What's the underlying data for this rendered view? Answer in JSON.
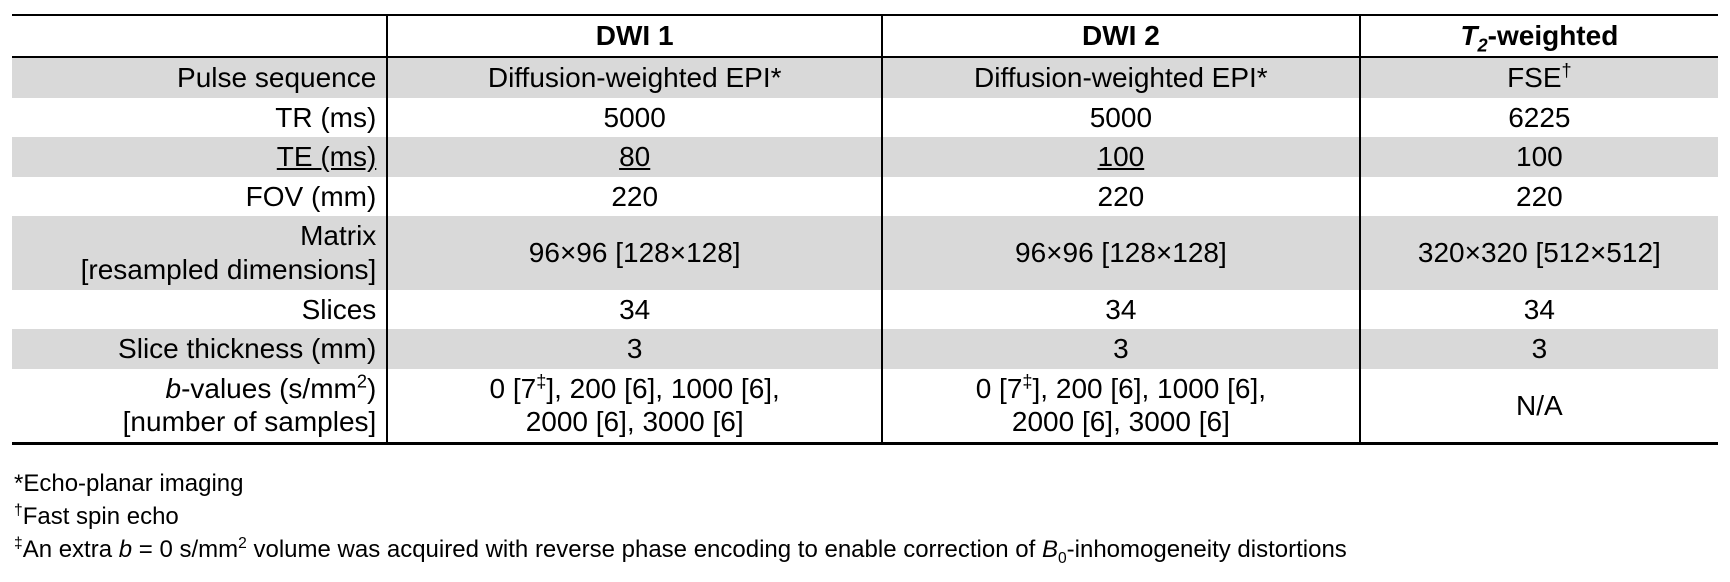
{
  "page": {
    "background_color": "#ffffff",
    "text_color": "#000000",
    "stripe_color": "#d9d9d9",
    "border_color": "#000000"
  },
  "table": {
    "column_headers": {
      "col0": "",
      "col1": "DWI 1",
      "col2": "DWI 2",
      "col3": "<i>T<sub>2</sub></i>-weighted"
    },
    "rows": [
      {
        "label": "Pulse sequence",
        "values": [
          "Diffusion-weighted EPI*",
          "Diffusion-weighted EPI*",
          "FSE<sup>†</sup>"
        ]
      },
      {
        "label": "TR (ms)",
        "values": [
          "5000",
          "5000",
          "6225"
        ]
      },
      {
        "label": "<u>TE (ms)</u>",
        "values": [
          "<u>80</u>",
          "<u>100</u>",
          "100"
        ]
      },
      {
        "label": "FOV (mm)",
        "values": [
          "220",
          "220",
          "220"
        ]
      },
      {
        "label": "Matrix<br>[resampled dimensions]",
        "values": [
          "96×96 [128×128]",
          "96×96 [128×128]",
          "320×320 [512×512]"
        ]
      },
      {
        "label": "Slices",
        "values": [
          "34",
          "34",
          "34"
        ]
      },
      {
        "label": "Slice thickness (mm)",
        "values": [
          "3",
          "3",
          "3"
        ]
      },
      {
        "label": "<i>b</i>-values (s/mm<sup>2</sup>)<br>[number of samples]",
        "values": [
          "0 [7<sup>‡</sup>], 200 [6], 1000 [6],<br>2000 [6], 3000 [6]",
          "0 [7<sup>‡</sup>], 200 [6], 1000 [6],<br>2000 [6], 3000 [6]",
          "N/A"
        ]
      }
    ]
  },
  "footnotes": [
    "*Echo-planar imaging",
    "<sup>†</sup>Fast spin echo",
    "<sup>‡</sup>An extra <i>b</i> = 0 s/mm<sup>2</sup> volume was acquired with reverse phase encoding to enable correction of <i>B</i><sub>0</sub>-inhomogeneity distortions"
  ]
}
